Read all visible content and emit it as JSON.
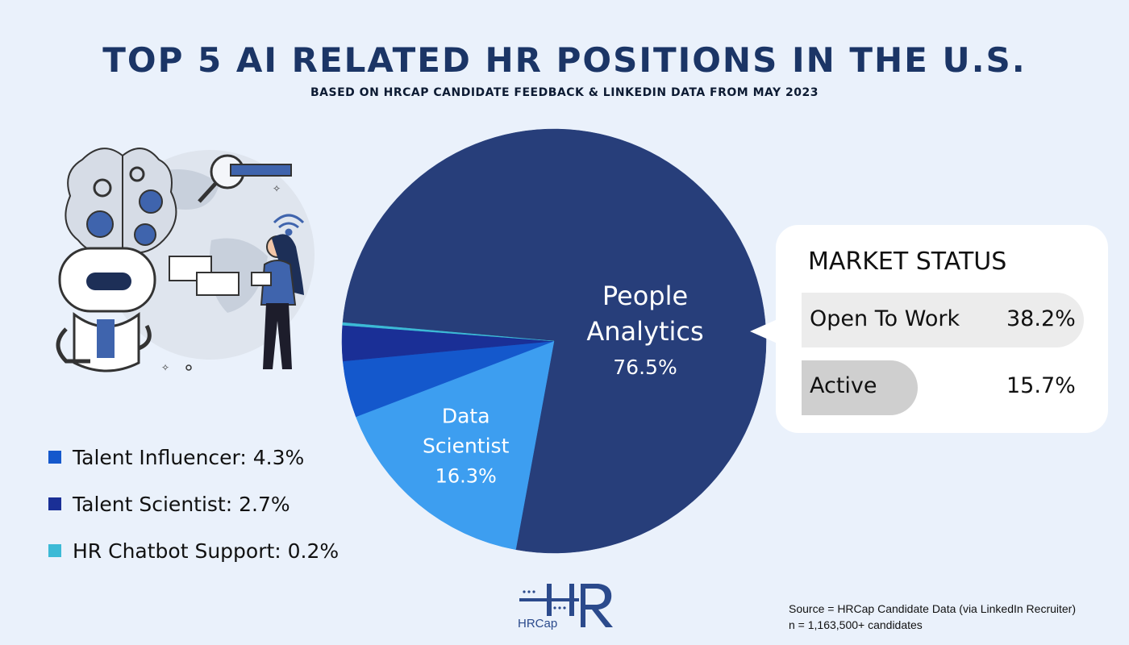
{
  "title": "TOP 5 AI RELATED HR POSITIONS IN THE U.S.",
  "subtitle": "BASED ON HRCAP CANDIDATE FEEDBACK & LINKEDIN DATA FROM MAY 2023",
  "chart_data": {
    "type": "pie",
    "title": "TOP 5 AI RELATED HR POSITIONS IN THE U.S.",
    "subtitle": "BASED ON HRCAP CANDIDATE FEEDBACK & LINKEDIN DATA FROM MAY 2023",
    "slices": [
      {
        "name": "People Analytics",
        "value": 76.5,
        "label": "76.5%",
        "color": "#273e7a",
        "labeled": true
      },
      {
        "name": "Data Scientist",
        "value": 16.3,
        "label": "16.3%",
        "color": "#3d9ef0",
        "labeled": true
      },
      {
        "name": "Talent Influencer",
        "value": 4.3,
        "label": "4.3%",
        "color": "#1458cc",
        "labeled": false
      },
      {
        "name": "Talent Scientist",
        "value": 2.7,
        "label": "2.7%",
        "color": "#1a2f96",
        "labeled": false
      },
      {
        "name": "HR Chatbot Support",
        "value": 0.2,
        "label": "0.2%",
        "color": "#3cbad6",
        "labeled": false
      }
    ]
  },
  "legend": [
    {
      "label": "Talent Influencer: 4.3%",
      "color": "#1458cc"
    },
    {
      "label": "Talent Scientist: 2.7%",
      "color": "#1a2f96"
    },
    {
      "label": "HR Chatbot Support: 0.2%",
      "color": "#3cbad6"
    }
  ],
  "market_status": {
    "title": "MARKET STATUS",
    "rows": [
      {
        "label": "Open To Work",
        "value": "38.2%"
      },
      {
        "label": "Active",
        "value": "15.7%"
      }
    ]
  },
  "logo": {
    "text": "HRCap"
  },
  "source": {
    "line1": "Source = HRCap Candidate Data (via LinkedIn Recruiter)",
    "line2": "n = 1,163,500+ candidates"
  },
  "colors": {
    "background": "#eaf1fb",
    "title": "#1b3566",
    "accent": "#273e7a"
  },
  "icons": [
    "robot-illustration-icon",
    "brain-gears-icon",
    "globe-icon",
    "magnifier-icon",
    "wifi-icon",
    "chat-bubble-icon",
    "woman-with-tablet-icon"
  ]
}
